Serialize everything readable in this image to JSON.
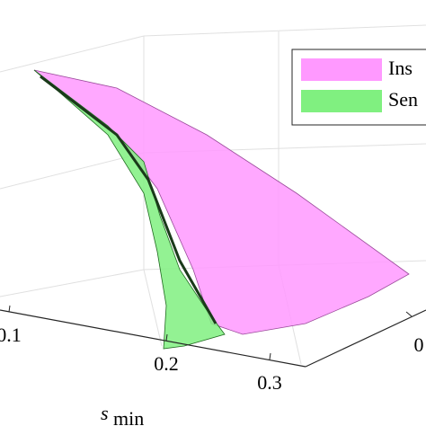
{
  "chart_data": {
    "type": "surface3d",
    "xlabel": "s",
    "xlabel_subscript": "min",
    "xticks": [
      0.1,
      0.2,
      0.3
    ],
    "yticks": [
      0
    ],
    "series": [
      {
        "name": "Ins",
        "color": "#ff99ff"
      },
      {
        "name": "Sen",
        "color": "#80f080"
      }
    ]
  }
}
